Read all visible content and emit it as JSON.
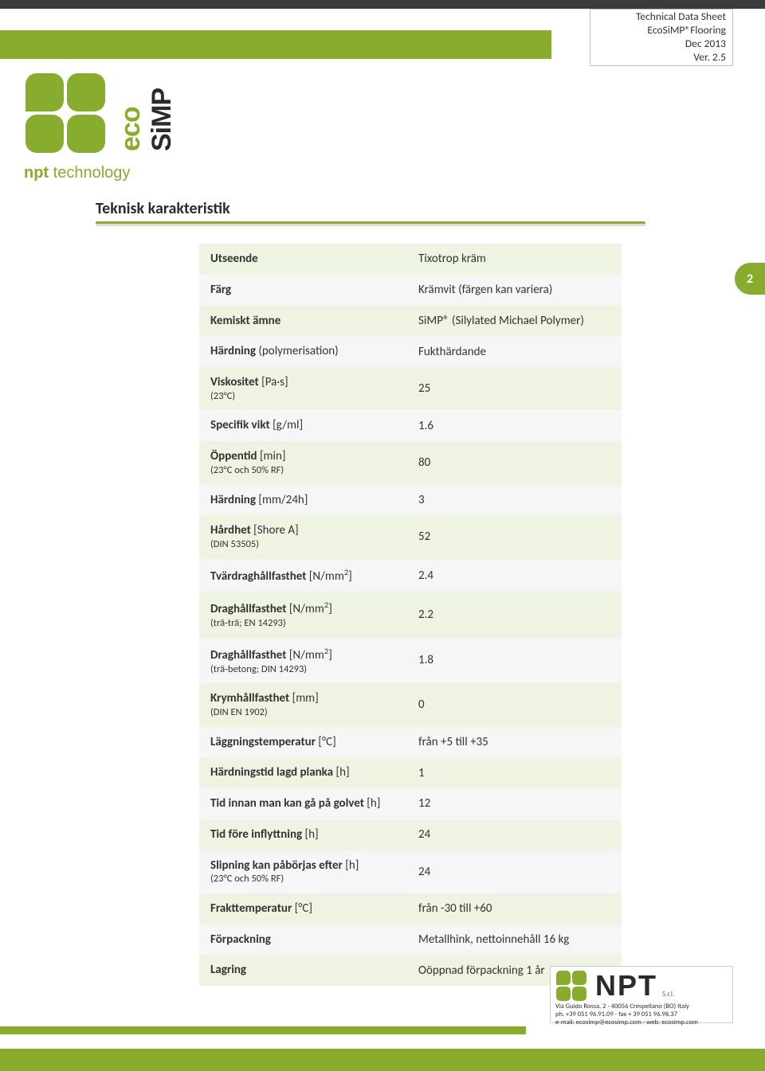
{
  "colors": {
    "green": "#87ac2e",
    "dark": "#3c3c3c",
    "row_odd": "#eff3e2",
    "row_even": "#f6f6f6"
  },
  "header_box": {
    "line1": "Technical Data Sheet",
    "line2": "EcoSiMP®Flooring",
    "line3": "Dec 2013",
    "line4": "Ver. 2.5"
  },
  "logo": {
    "eco": "eco",
    "simp": "SiMP",
    "npt_bold": "npt",
    "npt_light": " technology"
  },
  "section_title": "Teknisk karakteristik",
  "page_number": "2",
  "rows": [
    {
      "label_bold": "Utseende",
      "label_rest": "",
      "sub": "",
      "value": "Tixotrop kräm"
    },
    {
      "label_bold": "Färg",
      "label_rest": "",
      "sub": "",
      "value": "Krämvit (färgen kan variera)"
    },
    {
      "label_bold": "Kemiskt ämne",
      "label_rest": "",
      "sub": "",
      "value": "SiMP® (Silylated Michael Polymer)"
    },
    {
      "label_bold": "Härdning",
      "label_rest": " (polymerisation)",
      "sub": "",
      "value": "Fukthärdande"
    },
    {
      "label_bold": "Viskositet",
      "label_rest": " [Pa·s]",
      "sub": "(23°C)",
      "value": "25"
    },
    {
      "label_bold": "Specifik vikt",
      "label_rest": " [g/ml]",
      "sub": "",
      "value": "1.6"
    },
    {
      "label_bold": "Öppentid",
      "label_rest": "  [min]",
      "sub": "(23°C och 50% RF)",
      "value": "80"
    },
    {
      "label_bold": "Härdning",
      "label_rest": " [mm/24h]",
      "sub": "",
      "value": "3"
    },
    {
      "label_bold": "Hårdhet",
      "label_rest": " [Shore A]",
      "sub": "(DIN 53505)",
      "value": "52"
    },
    {
      "label_bold": "Tvärdraghållfasthet",
      "label_rest": " [N/mm²]",
      "sub": "",
      "value": "2.4"
    },
    {
      "label_bold": "Draghållfasthet",
      "label_rest": " [N/mm²]",
      "sub": "(trä-trä; EN 14293)",
      "value": "2.2"
    },
    {
      "label_bold": "Draghållfasthet",
      "label_rest": " [N/mm²]",
      "sub": "(trä-betong; DIN 14293)",
      "value": "1.8"
    },
    {
      "label_bold": "Krymhållfasthet",
      "label_rest": " [mm]",
      "sub": "(DIN EN 1902)",
      "value": "0"
    },
    {
      "label_bold": "Läggningstemperatur",
      "label_rest": "  [°C]",
      "sub": "",
      "value": "från +5 till +35"
    },
    {
      "label_bold": "Härdningstid lagd planka",
      "label_rest": " [h]",
      "sub": "",
      "value": "1"
    },
    {
      "label_bold": "Tid innan man kan gå på golvet",
      "label_rest": " [h]",
      "sub": "",
      "value": "12"
    },
    {
      "label_bold": "Tid före inflyttning",
      "label_rest": " [h]",
      "sub": "",
      "value": "24"
    },
    {
      "label_bold": "Slipning kan påbörjas efter",
      "label_rest": " [h]",
      "sub": "(23°C och 50% RF)",
      "value": "24"
    },
    {
      "label_bold": "Frakttemperatur",
      "label_rest": " [°C]",
      "sub": "",
      "value": "från -30 till +60"
    },
    {
      "label_bold": "Förpackning",
      "label_rest": "",
      "sub": "",
      "value": "Metallhink, nettoinnehåll 16 kg"
    },
    {
      "label_bold": "Lagring",
      "label_rest": "",
      "sub": "",
      "value": "Oöppnad förpackning 1 år"
    }
  ],
  "footer": {
    "brand": "NPT",
    "srl": "S.r.l.",
    "addr": "Via Guido Rossa, 2 - 40056 Crespellano (BO) Italy",
    "phone": "ph. +39 051 96.91.09 - fax + 39 051 96.98.37",
    "email": "e-mail: ecosimp@ecosimp.com - web: ecosimp.com"
  }
}
